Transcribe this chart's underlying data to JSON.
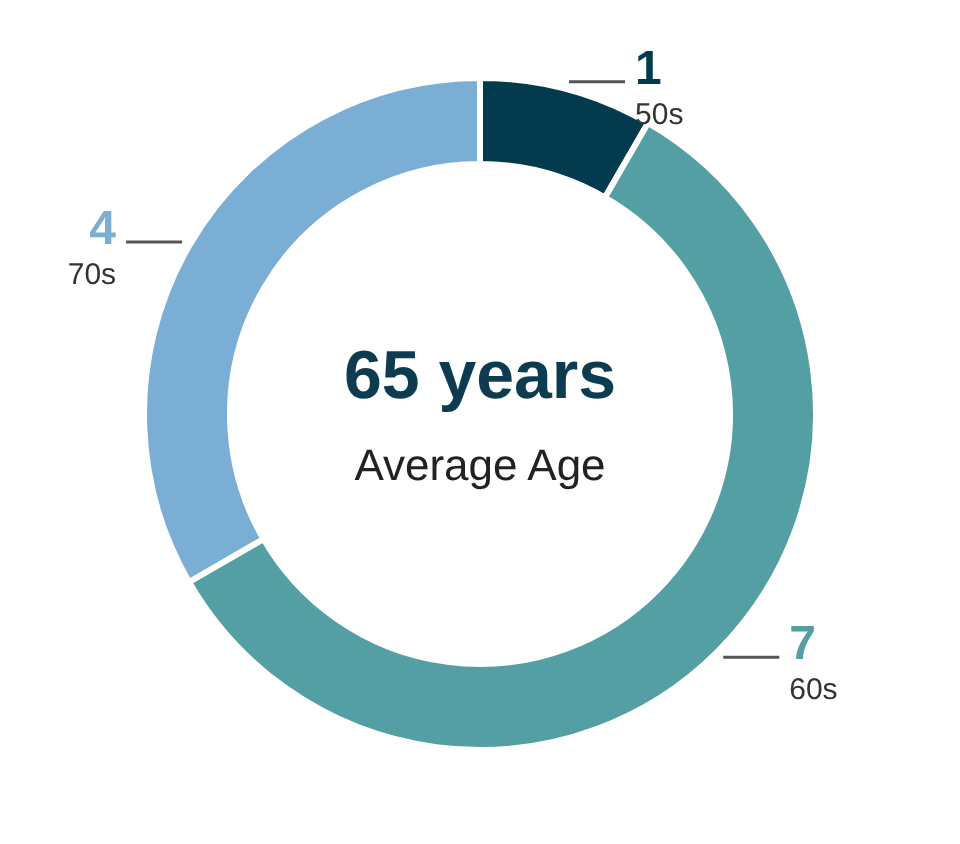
{
  "chart_data": {
    "type": "donut",
    "categories": [
      "50s",
      "60s",
      "70s"
    ],
    "values": [
      1,
      7,
      4
    ],
    "colors": [
      "#033a4e",
      "#549fa4",
      "#7aaed5"
    ],
    "data_labels": true,
    "annotations": [
      "65 years",
      "Average Age"
    ]
  }
}
